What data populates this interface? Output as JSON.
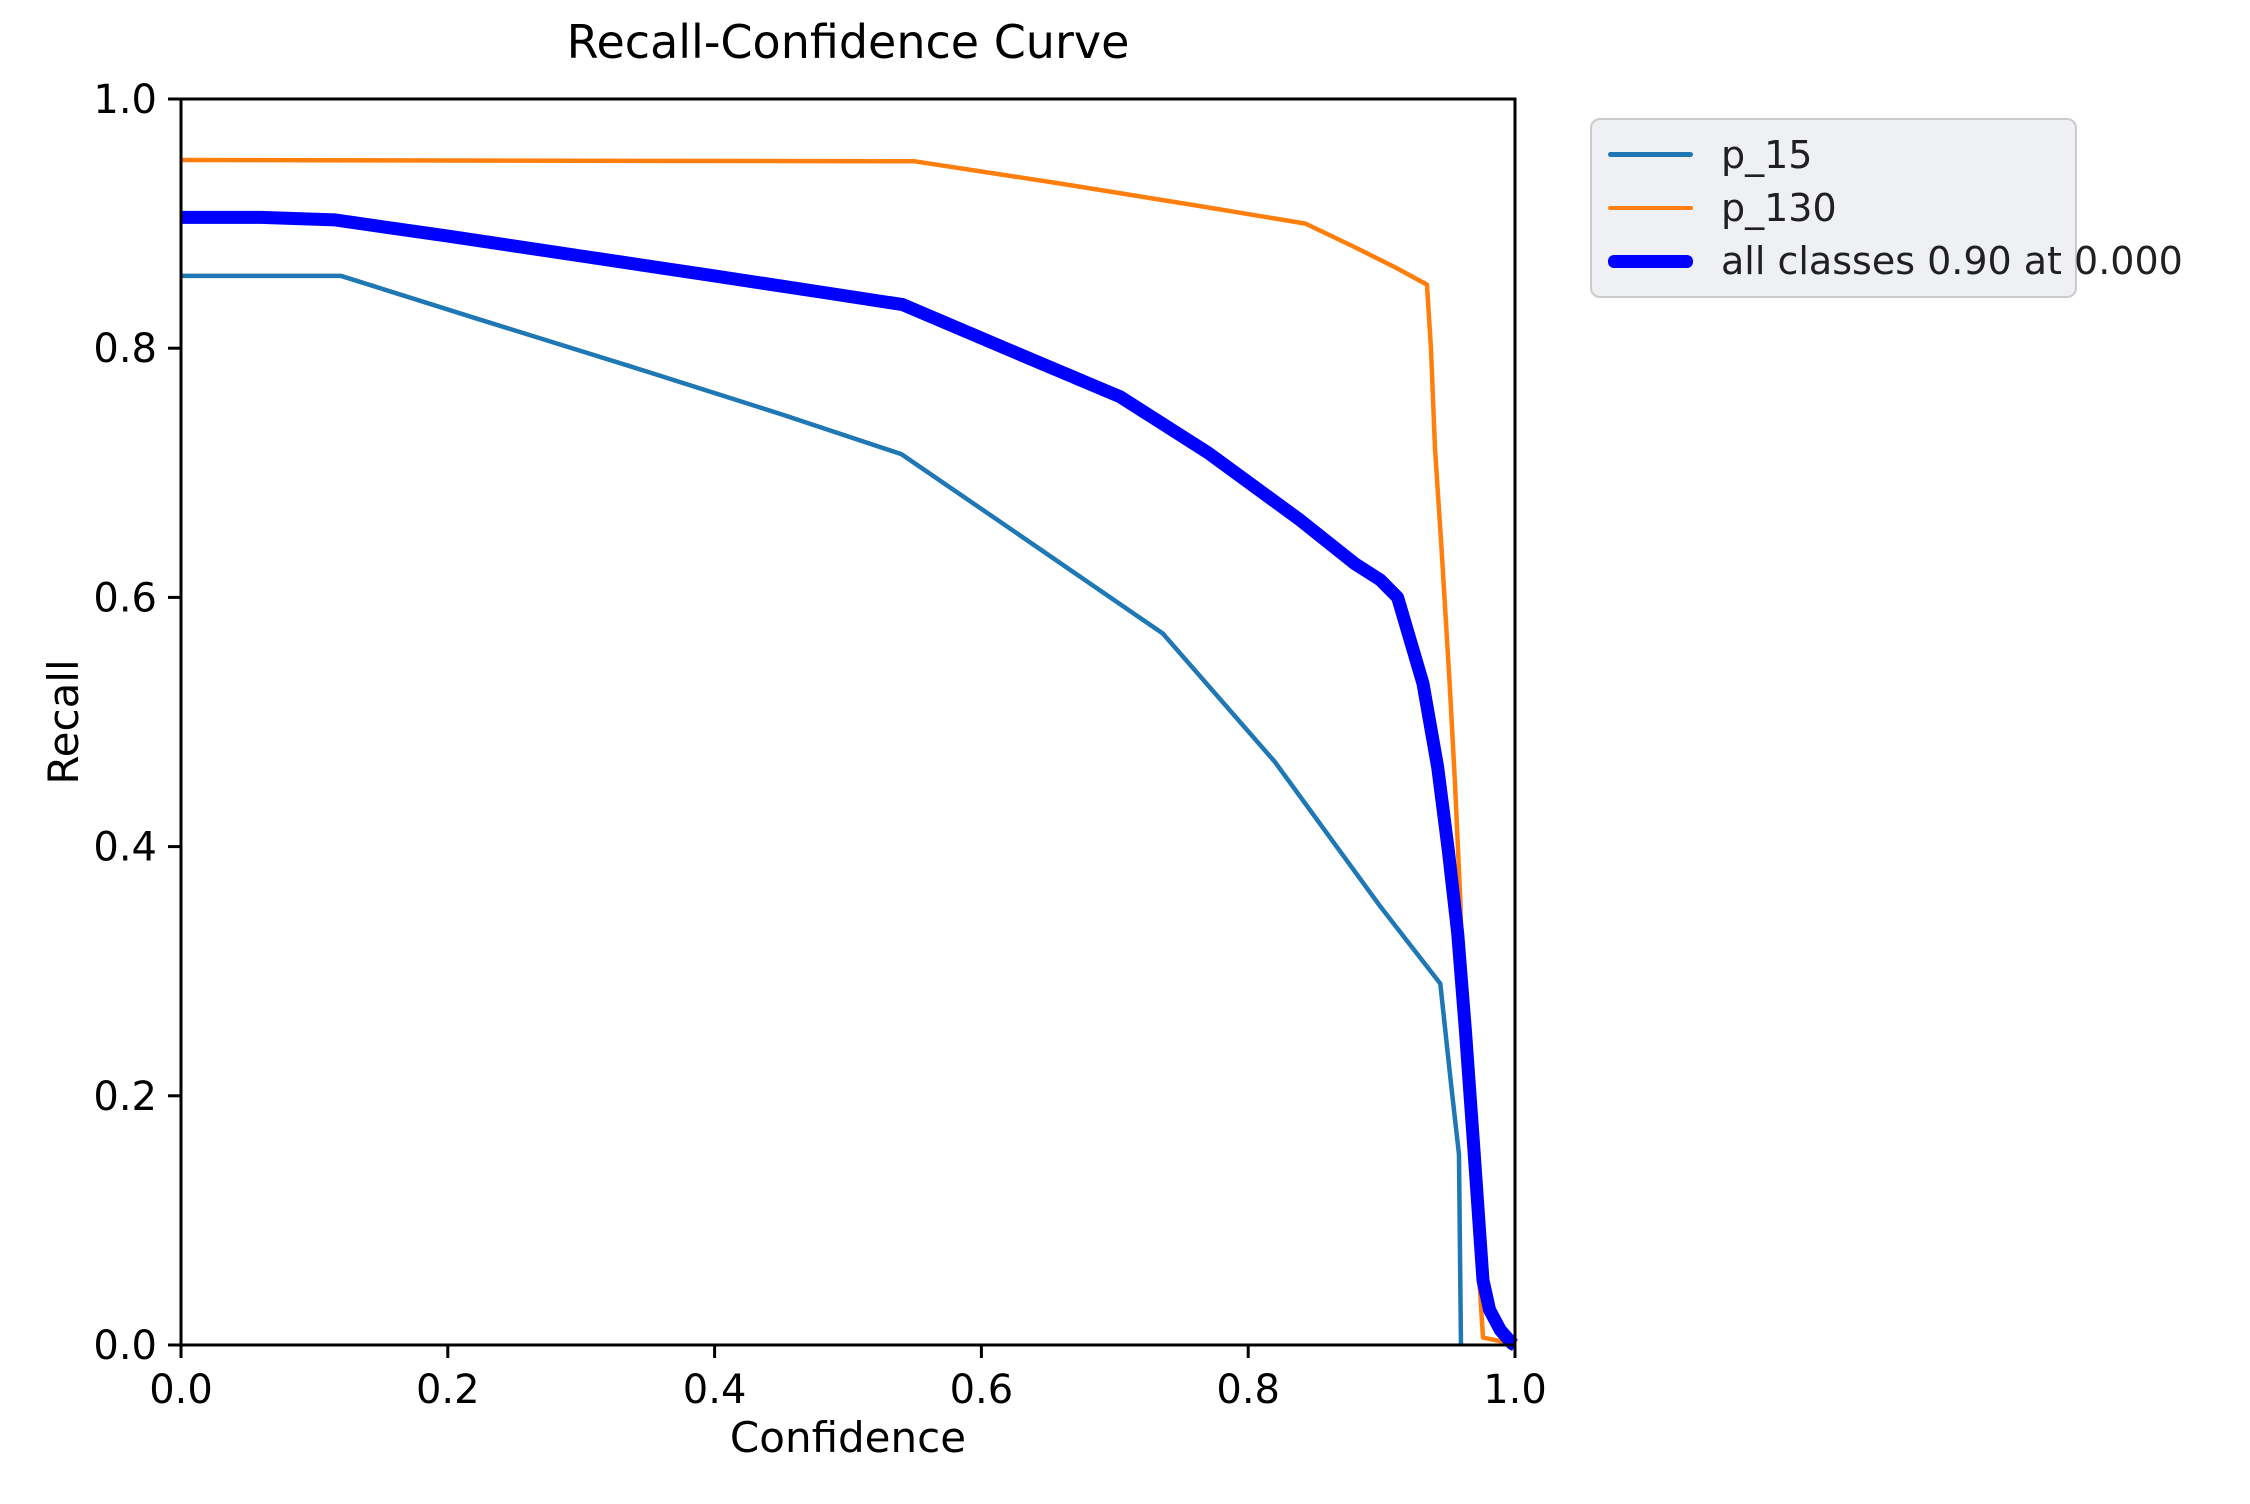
{
  "figure": {
    "background": "#ffffff",
    "text_color": "#000000",
    "spine_color": "#000000"
  },
  "chart_data": {
    "type": "line",
    "title": "Recall-Confidence Curve",
    "xlabel": "Confidence",
    "ylabel": "Recall",
    "xlim": [
      0.0,
      1.0
    ],
    "ylim": [
      0.0,
      1.0
    ],
    "grid": false,
    "xticks": {
      "values": [
        0.0,
        0.2,
        0.4,
        0.6,
        0.8,
        1.0
      ],
      "labels": [
        "0.0",
        "0.2",
        "0.4",
        "0.6",
        "0.8",
        "1.0"
      ]
    },
    "yticks": {
      "values": [
        0.0,
        0.2,
        0.4,
        0.6,
        0.8,
        1.0
      ],
      "labels": [
        "0.0",
        "0.2",
        "0.4",
        "0.6",
        "0.8",
        "1.0"
      ]
    },
    "legend": {
      "position": "upper-right-outside",
      "background": "#eef0f4",
      "border_color": "#cccccc"
    },
    "series": [
      {
        "name": "p_15",
        "legend_label": "p_15",
        "color": "#1f77b4",
        "line_width": 4.5,
        "points": [
          [
            0.0,
            0.858
          ],
          [
            0.12,
            0.858
          ],
          [
            0.224,
            0.823
          ],
          [
            0.35,
            0.781
          ],
          [
            0.45,
            0.747
          ],
          [
            0.54,
            0.715
          ],
          [
            0.63,
            0.649
          ],
          [
            0.736,
            0.571
          ],
          [
            0.82,
            0.468
          ],
          [
            0.899,
            0.352
          ],
          [
            0.944,
            0.29
          ],
          [
            0.952,
            0.21
          ],
          [
            0.958,
            0.153
          ],
          [
            0.959,
            0.05
          ],
          [
            0.9595,
            0.0
          ]
        ]
      },
      {
        "name": "p_130",
        "legend_label": "p_130",
        "color": "#ff7f0e",
        "line_width": 4.5,
        "points": [
          [
            0.0,
            0.951
          ],
          [
            0.55,
            0.95
          ],
          [
            0.66,
            0.932
          ],
          [
            0.764,
            0.914
          ],
          [
            0.843,
            0.9
          ],
          [
            0.88,
            0.881
          ],
          [
            0.91,
            0.865
          ],
          [
            0.934,
            0.851
          ],
          [
            0.937,
            0.8
          ],
          [
            0.94,
            0.72
          ],
          [
            0.945,
            0.638
          ],
          [
            0.951,
            0.531
          ],
          [
            0.955,
            0.451
          ],
          [
            0.959,
            0.357
          ],
          [
            0.961,
            0.277
          ],
          [
            0.965,
            0.19
          ],
          [
            0.97,
            0.1
          ],
          [
            0.974,
            0.04
          ],
          [
            0.976,
            0.006
          ],
          [
            0.994,
            0.002
          ],
          [
            0.995,
            0.0
          ]
        ]
      },
      {
        "name": "all classes",
        "legend_label": "all classes 0.90 at 0.000",
        "color": "#0000ff",
        "line_width": 13,
        "points": [
          [
            0.0,
            0.905
          ],
          [
            0.06,
            0.905
          ],
          [
            0.115,
            0.903
          ],
          [
            0.2,
            0.89
          ],
          [
            0.3,
            0.874
          ],
          [
            0.4,
            0.858
          ],
          [
            0.48,
            0.845
          ],
          [
            0.541,
            0.835
          ],
          [
            0.62,
            0.799
          ],
          [
            0.704,
            0.761
          ],
          [
            0.77,
            0.716
          ],
          [
            0.839,
            0.662
          ],
          [
            0.88,
            0.627
          ],
          [
            0.899,
            0.614
          ],
          [
            0.912,
            0.6
          ],
          [
            0.931,
            0.531
          ],
          [
            0.942,
            0.464
          ],
          [
            0.95,
            0.397
          ],
          [
            0.957,
            0.331
          ],
          [
            0.963,
            0.25
          ],
          [
            0.969,
            0.16
          ],
          [
            0.976,
            0.052
          ],
          [
            0.981,
            0.028
          ],
          [
            0.989,
            0.012
          ],
          [
            0.998,
            0.001
          ],
          [
            1.0,
            0.0
          ]
        ]
      }
    ]
  }
}
